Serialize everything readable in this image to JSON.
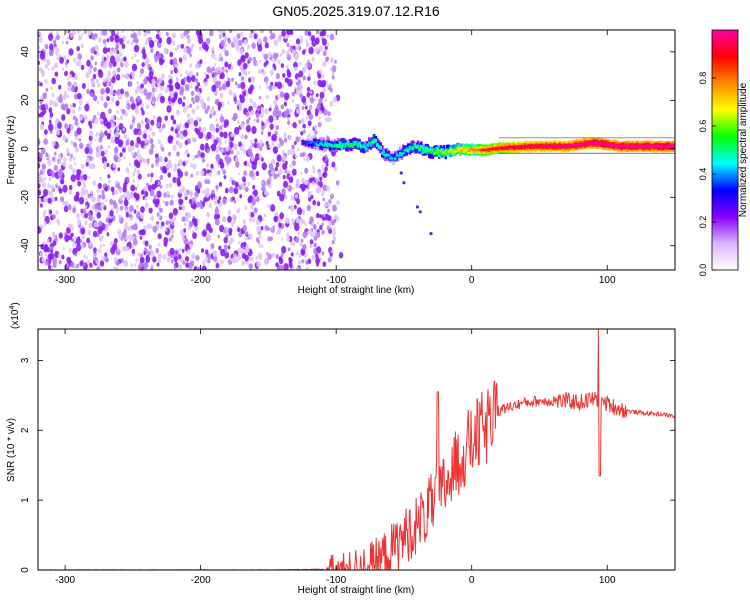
{
  "title": "GN05.2025.319.07.12.R16",
  "chart_data": [
    {
      "type": "heatmap",
      "xlabel": "Height of straight line (km)",
      "ylabel": "Frequency (Hz)",
      "xlim": [
        -320,
        150
      ],
      "ylim": [
        -50,
        49
      ],
      "xticks": [
        -300,
        -200,
        -100,
        0,
        100
      ],
      "yticks": [
        -40,
        -20,
        0,
        20,
        40
      ],
      "noise_region_x": [
        -320,
        -105
      ],
      "ridge": [
        {
          "x": -125,
          "y": 2.5,
          "v": 0.2
        },
        {
          "x": -115,
          "y": 2,
          "v": 0.35
        },
        {
          "x": -105,
          "y": 1.5,
          "v": 0.4
        },
        {
          "x": -95,
          "y": 1.5,
          "v": 0.45
        },
        {
          "x": -85,
          "y": 2,
          "v": 0.45
        },
        {
          "x": -78,
          "y": 0.5,
          "v": 0.4
        },
        {
          "x": -72,
          "y": 4,
          "v": 0.45
        },
        {
          "x": -66,
          "y": -1.5,
          "v": 0.4
        },
        {
          "x": -58,
          "y": -4,
          "v": 0.35
        },
        {
          "x": -50,
          "y": -1,
          "v": 0.4
        },
        {
          "x": -42,
          "y": 1,
          "v": 0.45
        },
        {
          "x": -32,
          "y": -1,
          "v": 0.5
        },
        {
          "x": -20,
          "y": -1.5,
          "v": 0.55
        },
        {
          "x": -10,
          "y": -0.5,
          "v": 0.65
        },
        {
          "x": 0,
          "y": -0.5,
          "v": 0.7
        },
        {
          "x": 10,
          "y": -0.5,
          "v": 0.8
        },
        {
          "x": 25,
          "y": 0.5,
          "v": 0.85
        },
        {
          "x": 45,
          "y": 1,
          "v": 0.9
        },
        {
          "x": 70,
          "y": 1,
          "v": 0.92
        },
        {
          "x": 90,
          "y": 2.5,
          "v": 0.95
        },
        {
          "x": 110,
          "y": 1,
          "v": 0.95
        },
        {
          "x": 150,
          "y": 1,
          "v": 0.95
        }
      ],
      "colorbar": {
        "label": "Normalized spectral amplitude",
        "range": [
          0,
          1
        ],
        "ticks": [
          0.0,
          0.2,
          0.4,
          0.6,
          0.8
        ],
        "colors": [
          "#ffffff",
          "#d9b3ff",
          "#8800ff",
          "#0000ff",
          "#00ffff",
          "#00ff00",
          "#ffff00",
          "#ff8800",
          "#ff0000",
          "#ff00aa"
        ]
      }
    },
    {
      "type": "line",
      "xlabel": "Height of straight line (km)",
      "ylabel": "SNR (10 * v/v)",
      "scale_label": "(x10",
      "scale_exponent": "4",
      "xlim": [
        -320,
        150
      ],
      "ylim": [
        0,
        3.45
      ],
      "xticks": [
        -300,
        -200,
        -100,
        0,
        100
      ],
      "yticks": [
        0,
        1,
        2,
        3
      ],
      "line_color": "#ee3333",
      "series": [
        {
          "x": [
            -320,
            -150,
            -110,
            -100,
            -90,
            -80,
            -70,
            -60,
            -50,
            -40,
            -30,
            -20,
            -10,
            0,
            10,
            20,
            30,
            40,
            50,
            60,
            70,
            80,
            90,
            100,
            110,
            120,
            130,
            140,
            150
          ],
          "values": [
            0.0,
            0.0,
            0.01,
            0.02,
            0.04,
            0.1,
            0.18,
            0.35,
            0.55,
            0.75,
            1.0,
            1.3,
            1.65,
            1.95,
            2.15,
            2.28,
            2.35,
            2.4,
            2.42,
            2.42,
            2.42,
            2.4,
            2.45,
            2.38,
            2.3,
            2.26,
            2.24,
            2.23,
            2.2
          ]
        }
      ]
    }
  ]
}
